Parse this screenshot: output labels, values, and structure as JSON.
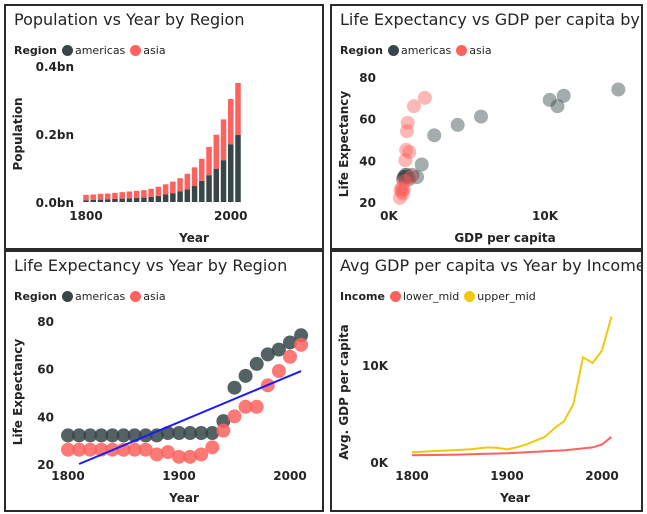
{
  "panels": [
    {
      "title": "Population vs Year by Region",
      "legend_title": "Region",
      "legend": [
        "americas",
        "asia"
      ]
    },
    {
      "title": "Life Expectancy vs GDP per capita by R...",
      "legend_title": "Region",
      "legend": [
        "americas",
        "asia"
      ]
    },
    {
      "title": "Life Expectancy vs Year by Region",
      "legend_title": "Region",
      "legend": [
        "americas",
        "asia"
      ]
    },
    {
      "title": "Avg GDP per capita vs Year by Income",
      "legend_title": "Income",
      "legend": [
        "lower_mid",
        "upper_mid"
      ]
    }
  ],
  "colors": {
    "americas": "#374649",
    "asia": "#fd625e",
    "lower_mid": "#fd625e",
    "upper_mid": "#f2c80f",
    "trend": "#1a1aff"
  },
  "chart_data": [
    {
      "type": "bar",
      "stacked": true,
      "title": "Population vs Year by Region",
      "xlabel": "Year",
      "ylabel": "Population",
      "x_ticks": [
        "1800",
        "2000"
      ],
      "y_ticks": [
        "0.0bn",
        "0.2bn",
        "0.4bn"
      ],
      "ylim": [
        0,
        0.4
      ],
      "categories": [
        1800,
        1810,
        1820,
        1830,
        1840,
        1850,
        1860,
        1870,
        1880,
        1890,
        1900,
        1910,
        1920,
        1930,
        1940,
        1950,
        1960,
        1970,
        1980,
        1990,
        2000,
        2010
      ],
      "series": [
        {
          "name": "americas",
          "values": [
            0.005,
            0.006,
            0.007,
            0.008,
            0.009,
            0.01,
            0.011,
            0.012,
            0.013,
            0.015,
            0.018,
            0.022,
            0.026,
            0.031,
            0.037,
            0.047,
            0.062,
            0.079,
            0.098,
            0.123,
            0.17,
            0.197
          ]
        },
        {
          "name": "asia",
          "values": [
            0.016,
            0.016,
            0.017,
            0.017,
            0.018,
            0.019,
            0.02,
            0.021,
            0.022,
            0.024,
            0.027,
            0.03,
            0.034,
            0.039,
            0.046,
            0.055,
            0.065,
            0.083,
            0.1,
            0.12,
            0.133,
            0.153
          ]
        }
      ]
    },
    {
      "type": "scatter",
      "title": "Life Expectancy vs GDP per capita by Region",
      "xlabel": "GDP per capita",
      "ylabel": "Life Expectancy",
      "x_ticks": [
        "0K",
        "10K"
      ],
      "y_ticks": [
        "20",
        "40",
        "60",
        "80"
      ],
      "xlim": [
        0,
        15000
      ],
      "ylim": [
        20,
        85
      ],
      "series": [
        {
          "name": "americas",
          "points": [
            [
              900,
              31
            ],
            [
              950,
              32
            ],
            [
              1000,
              32
            ],
            [
              1050,
              33
            ],
            [
              1100,
              32
            ],
            [
              1150,
              33
            ],
            [
              1200,
              32
            ],
            [
              1300,
              31
            ],
            [
              1500,
              33
            ],
            [
              1800,
              32
            ],
            [
              2100,
              38
            ],
            [
              2900,
              52
            ],
            [
              4400,
              57
            ],
            [
              5900,
              61
            ],
            [
              10300,
              69
            ],
            [
              10800,
              66
            ],
            [
              11200,
              71
            ],
            [
              14700,
              74
            ]
          ]
        },
        {
          "name": "asia",
          "points": [
            [
              700,
              22
            ],
            [
              750,
              26
            ],
            [
              800,
              25
            ],
            [
              850,
              27
            ],
            [
              900,
              24
            ],
            [
              950,
              26
            ],
            [
              1000,
              30
            ],
            [
              1050,
              40
            ],
            [
              1100,
              45
            ],
            [
              1150,
              54
            ],
            [
              1200,
              58
            ],
            [
              1300,
              44
            ],
            [
              1400,
              32
            ],
            [
              1600,
              66
            ],
            [
              2300,
              70
            ]
          ]
        }
      ]
    },
    {
      "type": "scatter",
      "title": "Life Expectancy vs Year by Region",
      "xlabel": "Year",
      "ylabel": "Life Expectancy",
      "x_ticks": [
        "1800",
        "1900",
        "2000"
      ],
      "y_ticks": [
        "20",
        "40",
        "60",
        "80"
      ],
      "xlim": [
        1795,
        2015
      ],
      "ylim": [
        20,
        85
      ],
      "trendline": [
        [
          1810,
          20
        ],
        [
          2010,
          59
        ]
      ],
      "series": [
        {
          "name": "americas",
          "points": [
            [
              1800,
              32
            ],
            [
              1810,
              32
            ],
            [
              1820,
              32
            ],
            [
              1830,
              32
            ],
            [
              1840,
              32
            ],
            [
              1850,
              32
            ],
            [
              1860,
              32
            ],
            [
              1870,
              32
            ],
            [
              1880,
              32
            ],
            [
              1890,
              33
            ],
            [
              1900,
              33
            ],
            [
              1910,
              33
            ],
            [
              1920,
              33
            ],
            [
              1930,
              33
            ],
            [
              1940,
              38
            ],
            [
              1950,
              52
            ],
            [
              1960,
              57
            ],
            [
              1970,
              62
            ],
            [
              1980,
              66
            ],
            [
              1990,
              68
            ],
            [
              2000,
              71
            ],
            [
              2010,
              74
            ]
          ]
        },
        {
          "name": "asia",
          "points": [
            [
              1800,
              26
            ],
            [
              1810,
              26
            ],
            [
              1820,
              26
            ],
            [
              1830,
              26
            ],
            [
              1840,
              26
            ],
            [
              1850,
              26
            ],
            [
              1860,
              26
            ],
            [
              1870,
              26
            ],
            [
              1880,
              24
            ],
            [
              1890,
              25
            ],
            [
              1900,
              23
            ],
            [
              1910,
              23
            ],
            [
              1920,
              24
            ],
            [
              1930,
              27
            ],
            [
              1940,
              34
            ],
            [
              1950,
              40
            ],
            [
              1960,
              44
            ],
            [
              1970,
              44
            ],
            [
              1980,
              53
            ],
            [
              1990,
              59
            ],
            [
              2000,
              65
            ],
            [
              2010,
              70
            ]
          ]
        }
      ]
    },
    {
      "type": "line",
      "title": "Avg GDP per capita vs Year by Income",
      "xlabel": "Year",
      "ylabel": "Avg. GDP per capita",
      "x_ticks": [
        "1800",
        "1900",
        "2000"
      ],
      "y_ticks": [
        "0K",
        "10K"
      ],
      "xlim": [
        1795,
        2015
      ],
      "ylim": [
        0,
        15000
      ],
      "series": [
        {
          "name": "lower_mid",
          "x": [
            1800,
            1810,
            1820,
            1830,
            1840,
            1850,
            1860,
            1870,
            1880,
            1890,
            1900,
            1910,
            1920,
            1930,
            1940,
            1950,
            1960,
            1970,
            1980,
            1990,
            2000,
            2010
          ],
          "y": [
            700,
            710,
            720,
            730,
            740,
            760,
            790,
            820,
            850,
            880,
            900,
            950,
            1000,
            1050,
            1100,
            1150,
            1200,
            1300,
            1400,
            1500,
            1800,
            2600
          ]
        },
        {
          "name": "upper_mid",
          "x": [
            1800,
            1810,
            1820,
            1830,
            1840,
            1850,
            1860,
            1870,
            1880,
            1890,
            1900,
            1910,
            1920,
            1930,
            1940,
            1950,
            1960,
            1970,
            1980,
            1990,
            2000,
            2010
          ],
          "y": [
            1000,
            1050,
            1100,
            1150,
            1200,
            1250,
            1300,
            1400,
            1500,
            1450,
            1300,
            1500,
            1800,
            2200,
            2600,
            3500,
            4200,
            6000,
            10800,
            10200,
            11500,
            15000
          ]
        }
      ]
    }
  ]
}
